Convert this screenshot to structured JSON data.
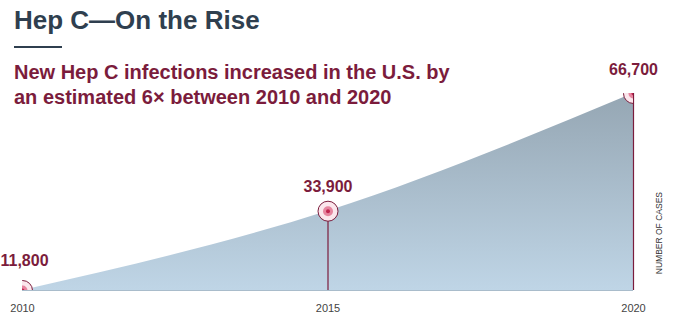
{
  "chart_data": {
    "type": "area",
    "title": "Hep C—On the Rise",
    "subtitle": "New Hep C infections increased in the U.S. by an estimated 6× between 2010 and 2020",
    "x": [
      2010,
      2015,
      2020
    ],
    "values": [
      11800,
      33900,
      66700
    ],
    "value_labels": [
      "11,800",
      "33,900",
      "66,700"
    ],
    "data_labels": true,
    "y_label": "NUMBER OF CASES",
    "xlim": [
      2010,
      2020
    ],
    "xticks": [
      2010,
      2015,
      2020
    ],
    "ylim": [
      11800,
      66700
    ],
    "yticks": [],
    "tick_labels": "x",
    "color": "#a9bccb",
    "marker": "circle",
    "grid": false
  }
}
